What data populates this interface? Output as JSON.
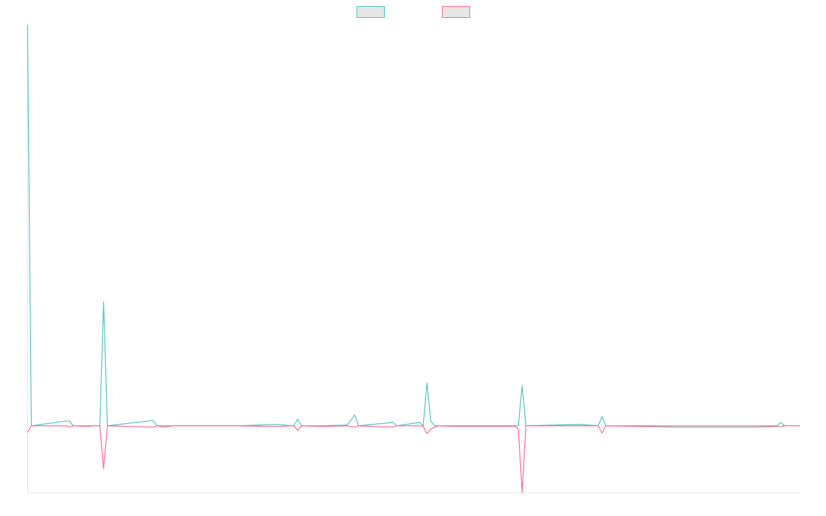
{
  "chart_data": {
    "type": "line",
    "title": "",
    "xlabel": "",
    "ylabel": "",
    "ylim": [
      -100,
      600
    ],
    "grid": false,
    "legend_position": "top-center",
    "series": [
      {
        "color": "#4bc0c0",
        "fill": "#e6e6e6",
        "points": [
          [
            0,
            600
          ],
          [
            1,
            0
          ],
          [
            10,
            7
          ],
          [
            11,
            7
          ],
          [
            12,
            0
          ],
          [
            19,
            0
          ],
          [
            20,
            185
          ],
          [
            21,
            0
          ],
          [
            33,
            8
          ],
          [
            34,
            0
          ],
          [
            36,
            0
          ],
          [
            38,
            0
          ],
          [
            55,
            0
          ],
          [
            66,
            2
          ],
          [
            69,
            0
          ],
          [
            70,
            0
          ],
          [
            71,
            10
          ],
          [
            72,
            0
          ],
          [
            77,
            0
          ],
          [
            84,
            1
          ],
          [
            86,
            16
          ],
          [
            87,
            0
          ],
          [
            96,
            5
          ],
          [
            97,
            0
          ],
          [
            103,
            5
          ],
          [
            104,
            0
          ],
          [
            105,
            64
          ],
          [
            106,
            7
          ],
          [
            107,
            0
          ],
          [
            108,
            0
          ],
          [
            112,
            0
          ],
          [
            121,
            0
          ],
          [
            128,
            0
          ],
          [
            129,
            0
          ],
          [
            130,
            60
          ],
          [
            131,
            0
          ],
          [
            145,
            2
          ],
          [
            150,
            0
          ],
          [
            151,
            14
          ],
          [
            152,
            0
          ],
          [
            170,
            0
          ],
          [
            191,
            0
          ],
          [
            197,
            0
          ],
          [
            198,
            5
          ],
          [
            199,
            0
          ],
          [
            203,
            0
          ]
        ]
      },
      {
        "color": "#ff6384",
        "fill": "#e6e6e6",
        "points": [
          [
            0,
            -10
          ],
          [
            1,
            0
          ],
          [
            10,
            0
          ],
          [
            11,
            -2
          ],
          [
            12,
            0
          ],
          [
            16,
            -1
          ],
          [
            17,
            0
          ],
          [
            19,
            0
          ],
          [
            20,
            -64
          ],
          [
            21,
            0
          ],
          [
            33,
            -2
          ],
          [
            34,
            0
          ],
          [
            36,
            -2
          ],
          [
            38,
            0
          ],
          [
            55,
            0
          ],
          [
            66,
            -1
          ],
          [
            69,
            0
          ],
          [
            70,
            0
          ],
          [
            71,
            -7
          ],
          [
            72,
            0
          ],
          [
            77,
            -1
          ],
          [
            84,
            0
          ],
          [
            86,
            -2
          ],
          [
            87,
            0
          ],
          [
            96,
            -2
          ],
          [
            97,
            0
          ],
          [
            103,
            0
          ],
          [
            104,
            -1
          ],
          [
            105,
            -12
          ],
          [
            106,
            -5
          ],
          [
            107,
            -2
          ],
          [
            108,
            0
          ],
          [
            112,
            -1
          ],
          [
            121,
            -1
          ],
          [
            128,
            -1
          ],
          [
            129,
            -4
          ],
          [
            130,
            -100
          ],
          [
            131,
            0
          ],
          [
            145,
            0
          ],
          [
            150,
            0
          ],
          [
            151,
            -11
          ],
          [
            152,
            0
          ],
          [
            170,
            -2
          ],
          [
            191,
            -2
          ],
          [
            197,
            -1
          ],
          [
            198,
            -1
          ],
          [
            199,
            0
          ],
          [
            203,
            0
          ]
        ]
      }
    ]
  }
}
